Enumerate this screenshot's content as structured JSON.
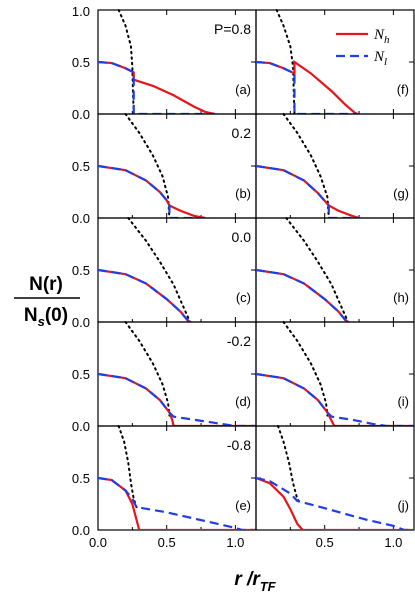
{
  "chart_data": {
    "type": "line",
    "layout": "5 rows x 2 columns of panels sharing axes",
    "xlabel": "r /r",
    "xlabel_sub": "TF",
    "ylabel_num": "N(r)",
    "ylabel_den": "N (0)",
    "ylabel_den_sub": "s",
    "xlim": [
      0,
      1.15
    ],
    "ylim": [
      0,
      1.0
    ],
    "x_ticks": [
      "0.0",
      "0.5",
      "1.0"
    ],
    "y_ticks": [
      "0.0",
      "0.5",
      "1.0"
    ],
    "legend": {
      "placement": "top-right of panel (f)",
      "entries": [
        {
          "label": "N",
          "sub": "h",
          "color": "#e8141b",
          "style": "solid"
        },
        {
          "label": "N",
          "sub": "l",
          "color": "#1f3ee6",
          "style": "dashed"
        }
      ]
    },
    "row_labels": [
      "P=0.8",
      "0.2",
      "0.0",
      "-0.2",
      "-0.8"
    ],
    "panel_labels": [
      "(a)",
      "(b)",
      "(c)",
      "(d)",
      "(e)",
      "(f)",
      "(g)",
      "(h)",
      "(i)",
      "(j)"
    ],
    "series_names": [
      "N_h",
      "N_l",
      "dotted reference"
    ],
    "panels": [
      {
        "id": "a",
        "row": 0,
        "col": 0,
        "N_h": [
          [
            0,
            0.5
          ],
          [
            0.1,
            0.49
          ],
          [
            0.2,
            0.44
          ],
          [
            0.26,
            0.4
          ],
          [
            0.26,
            0.33
          ],
          [
            0.4,
            0.27
          ],
          [
            0.55,
            0.18
          ],
          [
            0.7,
            0.07
          ],
          [
            0.78,
            0.02
          ],
          [
            0.85,
            0
          ]
        ],
        "N_l": [
          [
            0,
            0.5
          ],
          [
            0.1,
            0.49
          ],
          [
            0.2,
            0.44
          ],
          [
            0.26,
            0.4
          ],
          [
            0.26,
            0
          ],
          [
            0.85,
            0
          ]
        ],
        "dotted": [
          [
            0.15,
            1.0
          ],
          [
            0.2,
            0.85
          ],
          [
            0.24,
            0.65
          ],
          [
            0.25,
            0.45
          ],
          [
            0.255,
            0.2
          ],
          [
            0.26,
            0
          ]
        ]
      },
      {
        "id": "b",
        "row": 1,
        "col": 0,
        "N_h": [
          [
            0,
            0.5
          ],
          [
            0.2,
            0.46
          ],
          [
            0.35,
            0.36
          ],
          [
            0.45,
            0.25
          ],
          [
            0.5,
            0.17
          ],
          [
            0.52,
            0.12
          ],
          [
            0.6,
            0.07
          ],
          [
            0.7,
            0.02
          ],
          [
            0.78,
            0
          ]
        ],
        "N_l": [
          [
            0,
            0.5
          ],
          [
            0.2,
            0.46
          ],
          [
            0.35,
            0.36
          ],
          [
            0.45,
            0.25
          ],
          [
            0.5,
            0.17
          ],
          [
            0.52,
            0.12
          ],
          [
            0.52,
            0
          ],
          [
            0.78,
            0
          ]
        ],
        "dotted": [
          [
            0.2,
            1.0
          ],
          [
            0.3,
            0.82
          ],
          [
            0.4,
            0.6
          ],
          [
            0.47,
            0.4
          ],
          [
            0.51,
            0.2
          ],
          [
            0.52,
            0
          ]
        ]
      },
      {
        "id": "c",
        "row": 2,
        "col": 0,
        "N_h": [
          [
            0,
            0.5
          ],
          [
            0.2,
            0.46
          ],
          [
            0.35,
            0.37
          ],
          [
            0.5,
            0.22
          ],
          [
            0.6,
            0.1
          ],
          [
            0.65,
            0.02
          ],
          [
            0.67,
            0
          ]
        ],
        "N_l": [
          [
            0,
            0.5
          ],
          [
            0.2,
            0.46
          ],
          [
            0.35,
            0.37
          ],
          [
            0.5,
            0.22
          ],
          [
            0.6,
            0.1
          ],
          [
            0.65,
            0.02
          ],
          [
            0.67,
            0
          ]
        ],
        "dotted": [
          [
            0.22,
            1.0
          ],
          [
            0.35,
            0.78
          ],
          [
            0.45,
            0.58
          ],
          [
            0.55,
            0.36
          ],
          [
            0.62,
            0.15
          ],
          [
            0.67,
            0
          ]
        ]
      },
      {
        "id": "d",
        "row": 3,
        "col": 0,
        "N_h": [
          [
            0,
            0.5
          ],
          [
            0.2,
            0.46
          ],
          [
            0.35,
            0.36
          ],
          [
            0.45,
            0.25
          ],
          [
            0.52,
            0.13
          ],
          [
            0.54,
            0.06
          ],
          [
            0.55,
            0
          ],
          [
            1.15,
            0
          ]
        ],
        "N_l": [
          [
            0,
            0.5
          ],
          [
            0.2,
            0.46
          ],
          [
            0.35,
            0.36
          ],
          [
            0.45,
            0.25
          ],
          [
            0.52,
            0.13
          ],
          [
            0.55,
            0.09
          ],
          [
            0.7,
            0.06
          ],
          [
            0.9,
            0.02
          ],
          [
            1.0,
            0
          ],
          [
            1.15,
            0
          ]
        ],
        "dotted": [
          [
            0.2,
            1.0
          ],
          [
            0.3,
            0.82
          ],
          [
            0.4,
            0.6
          ],
          [
            0.47,
            0.4
          ],
          [
            0.51,
            0.22
          ],
          [
            0.52,
            0.1
          ]
        ]
      },
      {
        "id": "e",
        "row": 4,
        "col": 0,
        "N_h": [
          [
            0,
            0.5
          ],
          [
            0.1,
            0.48
          ],
          [
            0.2,
            0.38
          ],
          [
            0.25,
            0.25
          ],
          [
            0.28,
            0.1
          ],
          [
            0.3,
            0
          ],
          [
            1.15,
            0
          ]
        ],
        "N_l": [
          [
            0,
            0.5
          ],
          [
            0.1,
            0.48
          ],
          [
            0.2,
            0.38
          ],
          [
            0.25,
            0.3
          ],
          [
            0.28,
            0.22
          ],
          [
            0.5,
            0.17
          ],
          [
            0.8,
            0.08
          ],
          [
            1.0,
            0.02
          ],
          [
            1.05,
            0
          ],
          [
            1.15,
            0
          ]
        ],
        "dotted": [
          [
            0.15,
            1.0
          ],
          [
            0.19,
            0.85
          ],
          [
            0.22,
            0.65
          ],
          [
            0.24,
            0.45
          ],
          [
            0.26,
            0.3
          ],
          [
            0.28,
            0.22
          ]
        ]
      },
      {
        "id": "f",
        "row": 0,
        "col": 1,
        "N_h": [
          [
            0,
            0.5
          ],
          [
            0.1,
            0.49
          ],
          [
            0.2,
            0.44
          ],
          [
            0.28,
            0.39
          ],
          [
            0.28,
            0.5
          ],
          [
            0.4,
            0.39
          ],
          [
            0.55,
            0.22
          ],
          [
            0.65,
            0.09
          ],
          [
            0.72,
            0.01
          ],
          [
            0.74,
            0
          ]
        ],
        "N_l": [
          [
            0,
            0.5
          ],
          [
            0.1,
            0.49
          ],
          [
            0.2,
            0.44
          ],
          [
            0.28,
            0.39
          ],
          [
            0.28,
            0
          ],
          [
            0.74,
            0
          ]
        ],
        "dotted": [
          [
            0.15,
            1.0
          ],
          [
            0.2,
            0.85
          ],
          [
            0.25,
            0.65
          ],
          [
            0.27,
            0.45
          ],
          [
            0.275,
            0.2
          ],
          [
            0.28,
            0
          ]
        ]
      },
      {
        "id": "g",
        "row": 1,
        "col": 1,
        "N_h": [
          [
            0,
            0.5
          ],
          [
            0.2,
            0.46
          ],
          [
            0.35,
            0.36
          ],
          [
            0.45,
            0.24
          ],
          [
            0.53,
            0.12
          ],
          [
            0.6,
            0.07
          ],
          [
            0.7,
            0.02
          ],
          [
            0.75,
            0
          ]
        ],
        "N_l": [
          [
            0,
            0.5
          ],
          [
            0.2,
            0.46
          ],
          [
            0.35,
            0.36
          ],
          [
            0.45,
            0.24
          ],
          [
            0.53,
            0.12
          ],
          [
            0.53,
            0
          ],
          [
            0.75,
            0
          ]
        ],
        "dotted": [
          [
            0.2,
            1.0
          ],
          [
            0.3,
            0.82
          ],
          [
            0.4,
            0.6
          ],
          [
            0.47,
            0.4
          ],
          [
            0.52,
            0.2
          ],
          [
            0.53,
            0
          ]
        ]
      },
      {
        "id": "h",
        "row": 2,
        "col": 1,
        "N_h": [
          [
            0,
            0.5
          ],
          [
            0.2,
            0.46
          ],
          [
            0.35,
            0.37
          ],
          [
            0.5,
            0.22
          ],
          [
            0.6,
            0.1
          ],
          [
            0.65,
            0.02
          ],
          [
            0.67,
            0
          ]
        ],
        "N_l": [
          [
            0,
            0.5
          ],
          [
            0.2,
            0.46
          ],
          [
            0.35,
            0.37
          ],
          [
            0.5,
            0.22
          ],
          [
            0.6,
            0.1
          ],
          [
            0.65,
            0.02
          ],
          [
            0.67,
            0
          ]
        ],
        "dotted": [
          [
            0.22,
            1.0
          ],
          [
            0.35,
            0.78
          ],
          [
            0.45,
            0.58
          ],
          [
            0.55,
            0.36
          ],
          [
            0.62,
            0.15
          ],
          [
            0.67,
            0
          ]
        ]
      },
      {
        "id": "i",
        "row": 3,
        "col": 1,
        "N_h": [
          [
            0,
            0.5
          ],
          [
            0.2,
            0.46
          ],
          [
            0.35,
            0.36
          ],
          [
            0.45,
            0.25
          ],
          [
            0.52,
            0.13
          ],
          [
            0.55,
            0.05
          ],
          [
            0.57,
            0
          ],
          [
            1.15,
            0
          ]
        ],
        "N_l": [
          [
            0,
            0.5
          ],
          [
            0.2,
            0.46
          ],
          [
            0.35,
            0.36
          ],
          [
            0.45,
            0.25
          ],
          [
            0.52,
            0.13
          ],
          [
            0.55,
            0.09
          ],
          [
            0.7,
            0.06
          ],
          [
            0.85,
            0.02
          ],
          [
            0.95,
            0
          ],
          [
            1.15,
            0
          ]
        ],
        "dotted": [
          [
            0.2,
            1.0
          ],
          [
            0.3,
            0.82
          ],
          [
            0.4,
            0.6
          ],
          [
            0.47,
            0.4
          ],
          [
            0.51,
            0.22
          ],
          [
            0.52,
            0.1
          ]
        ]
      },
      {
        "id": "j",
        "row": 4,
        "col": 1,
        "N_h": [
          [
            0,
            0.5
          ],
          [
            0.1,
            0.45
          ],
          [
            0.2,
            0.32
          ],
          [
            0.25,
            0.2
          ],
          [
            0.3,
            0.06
          ],
          [
            0.34,
            0
          ],
          [
            1.15,
            0
          ]
        ],
        "N_l": [
          [
            0,
            0.5
          ],
          [
            0.1,
            0.47
          ],
          [
            0.2,
            0.39
          ],
          [
            0.25,
            0.35
          ],
          [
            0.3,
            0.28
          ],
          [
            0.5,
            0.21
          ],
          [
            0.8,
            0.1
          ],
          [
            1.0,
            0.04
          ],
          [
            1.08,
            0
          ],
          [
            1.15,
            0
          ]
        ],
        "dotted": [
          [
            0.16,
            1.0
          ],
          [
            0.2,
            0.85
          ],
          [
            0.24,
            0.65
          ],
          [
            0.27,
            0.45
          ],
          [
            0.3,
            0.3
          ],
          [
            0.32,
            0.26
          ]
        ]
      }
    ]
  },
  "colors": {
    "N_h": "#e8141b",
    "N_l": "#1f3ee6",
    "dotted": "#000000"
  }
}
